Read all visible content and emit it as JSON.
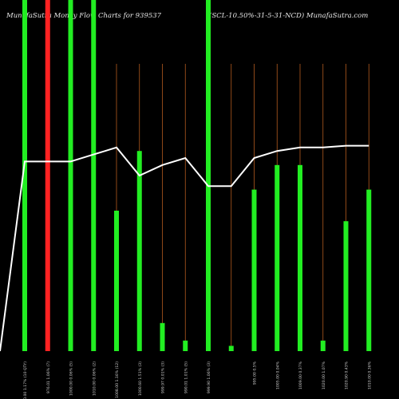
{
  "header": {
    "left": "MunafaSutra  Money Flow Charts for 939537",
    "mid": "",
    "right": "(SCL-10.50%-31-5-31-NCD) MunafaSutra.com"
  },
  "colors": {
    "background": "#000000",
    "up_bar": "#22ee22",
    "down_bar": "#ff2222",
    "grid_line": "#b35a1f",
    "price_line": "#ffffff",
    "tick_text": "#cccccc"
  },
  "chart_data": {
    "type": "bar",
    "title": "MunafaSutra Money Flow Charts for 939537 (SCL-10.50%-31-5-31-NCD) MunafaSutra.com",
    "xlabel": "",
    "ylabel": "",
    "ylim": [
      0,
      100
    ],
    "grid": "vertical",
    "categories": [
      "970.00 1.17% (10 QTY)",
      "976.01 1.06% (7)",
      "1000.00 0.06% (5)",
      "1010.00 0.06% (2)",
      "1008.00 1.16% (12)",
      "1000.60 1.51% (3)",
      "999.97 0.01% (3)",
      "990.01 1.01% (5)",
      "999.90 1.06% (3)",
      "",
      "995.00 0.5%",
      "1005.00 0.04%",
      "1009.00 0.37%",
      "1020.00 1.07%",
      "1020.90 0.43%",
      "1010.00 0.36%"
    ],
    "series": [
      {
        "values": [
          100,
          100,
          100,
          100,
          40,
          57,
          8,
          3,
          100,
          1.5,
          46,
          53,
          53,
          3,
          37,
          46
        ],
        "bar_colors": [
          "up",
          "down",
          "up",
          "up",
          "up",
          "up",
          "up",
          "up",
          "up",
          "up",
          "up",
          "up",
          "up",
          "up",
          "up",
          "up"
        ]
      },
      {
        "values": [
          54,
          54,
          54,
          56,
          58,
          50,
          53,
          55,
          47,
          47,
          55,
          57,
          58,
          58,
          58.5,
          58.5
        ]
      }
    ]
  }
}
